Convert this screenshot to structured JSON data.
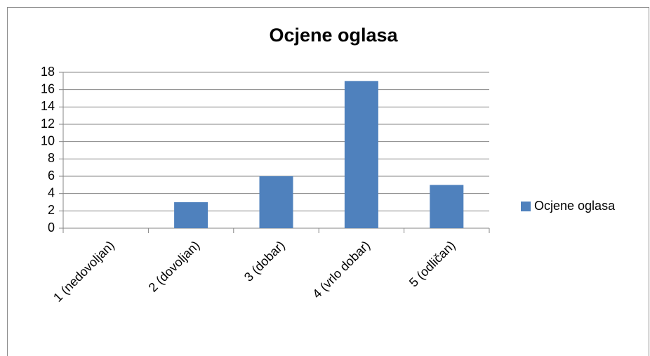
{
  "chart_data": {
    "type": "bar",
    "title": "Ocjene oglasa",
    "categories": [
      "1 (nedovoljan)",
      "2 (dovoljan)",
      "3 (dobar)",
      "4 (vrlo dobar)",
      "5 (odličan)"
    ],
    "series": [
      {
        "name": "Ocjene oglasa",
        "color": "#4f81bd",
        "values": [
          0,
          3,
          6,
          17,
          5
        ]
      }
    ],
    "ylim": [
      0,
      18
    ],
    "yticks": [
      0,
      2,
      4,
      6,
      8,
      10,
      12,
      14,
      16,
      18
    ],
    "grid": true,
    "legend": "right"
  }
}
